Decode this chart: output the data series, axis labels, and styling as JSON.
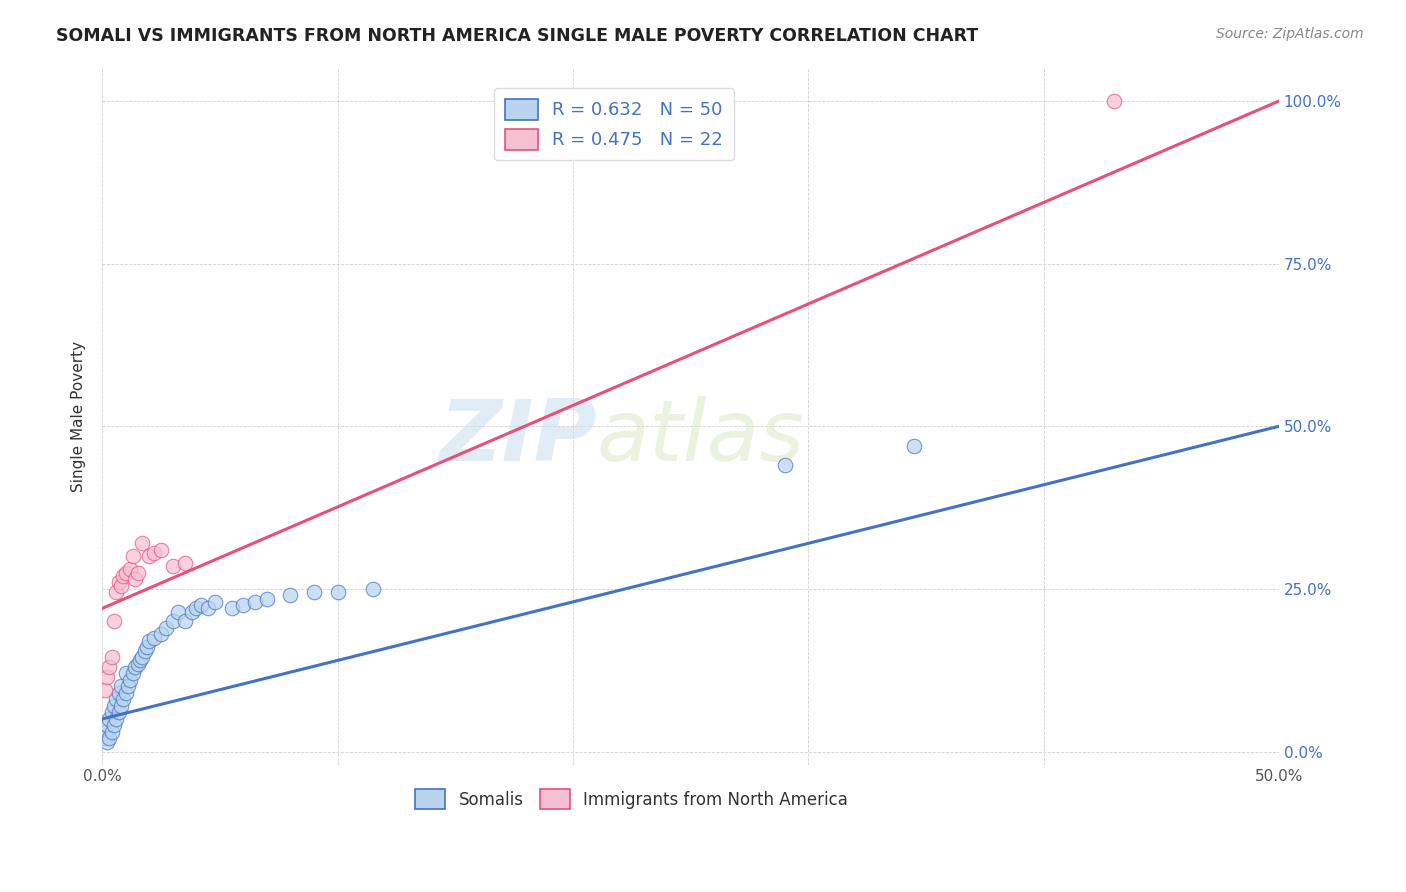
{
  "title": "SOMALI VS IMMIGRANTS FROM NORTH AMERICA SINGLE MALE POVERTY CORRELATION CHART",
  "source": "Source: ZipAtlas.com",
  "ylabel": "Single Male Poverty",
  "xlim": [
    0.0,
    0.5
  ],
  "ylim": [
    -0.02,
    1.05
  ],
  "legend_label1": "R = 0.632   N = 50",
  "legend_label2": "R = 0.475   N = 22",
  "legend_bottom1": "Somalis",
  "legend_bottom2": "Immigrants from North America",
  "somali_color": "#b8d4ee",
  "somali_line_color": "#4472c4",
  "immigrants_color": "#f5c0d0",
  "immigrants_line_color": "#e8507a",
  "somali_scatter": [
    [
      0.001,
      0.02
    ],
    [
      0.001,
      0.03
    ],
    [
      0.002,
      0.015
    ],
    [
      0.002,
      0.04
    ],
    [
      0.003,
      0.02
    ],
    [
      0.003,
      0.05
    ],
    [
      0.004,
      0.03
    ],
    [
      0.004,
      0.06
    ],
    [
      0.005,
      0.04
    ],
    [
      0.005,
      0.07
    ],
    [
      0.006,
      0.05
    ],
    [
      0.006,
      0.08
    ],
    [
      0.007,
      0.06
    ],
    [
      0.007,
      0.09
    ],
    [
      0.008,
      0.07
    ],
    [
      0.008,
      0.1
    ],
    [
      0.009,
      0.08
    ],
    [
      0.01,
      0.09
    ],
    [
      0.01,
      0.12
    ],
    [
      0.011,
      0.1
    ],
    [
      0.012,
      0.11
    ],
    [
      0.013,
      0.12
    ],
    [
      0.014,
      0.13
    ],
    [
      0.015,
      0.135
    ],
    [
      0.016,
      0.14
    ],
    [
      0.017,
      0.145
    ],
    [
      0.018,
      0.155
    ],
    [
      0.019,
      0.16
    ],
    [
      0.02,
      0.17
    ],
    [
      0.022,
      0.175
    ],
    [
      0.025,
      0.18
    ],
    [
      0.027,
      0.19
    ],
    [
      0.03,
      0.2
    ],
    [
      0.032,
      0.215
    ],
    [
      0.035,
      0.2
    ],
    [
      0.038,
      0.215
    ],
    [
      0.04,
      0.22
    ],
    [
      0.042,
      0.225
    ],
    [
      0.045,
      0.22
    ],
    [
      0.048,
      0.23
    ],
    [
      0.055,
      0.22
    ],
    [
      0.06,
      0.225
    ],
    [
      0.065,
      0.23
    ],
    [
      0.07,
      0.235
    ],
    [
      0.08,
      0.24
    ],
    [
      0.09,
      0.245
    ],
    [
      0.1,
      0.245
    ],
    [
      0.115,
      0.25
    ],
    [
      0.29,
      0.44
    ],
    [
      0.345,
      0.47
    ]
  ],
  "immigrants_scatter": [
    [
      0.001,
      0.095
    ],
    [
      0.002,
      0.115
    ],
    [
      0.003,
      0.13
    ],
    [
      0.004,
      0.145
    ],
    [
      0.005,
      0.2
    ],
    [
      0.006,
      0.245
    ],
    [
      0.007,
      0.26
    ],
    [
      0.008,
      0.255
    ],
    [
      0.009,
      0.27
    ],
    [
      0.01,
      0.275
    ],
    [
      0.012,
      0.28
    ],
    [
      0.013,
      0.3
    ],
    [
      0.014,
      0.265
    ],
    [
      0.015,
      0.275
    ],
    [
      0.017,
      0.32
    ],
    [
      0.02,
      0.3
    ],
    [
      0.022,
      0.305
    ],
    [
      0.025,
      0.31
    ],
    [
      0.03,
      0.285
    ],
    [
      0.035,
      0.29
    ],
    [
      0.26,
      0.97
    ],
    [
      0.43,
      1.0
    ]
  ],
  "somali_line": [
    0.0,
    0.5,
    0.05,
    0.5
  ],
  "immigrants_line": [
    0.0,
    0.5,
    0.22,
    1.0
  ],
  "watermark_zip": "ZIP",
  "watermark_atlas": "atlas"
}
